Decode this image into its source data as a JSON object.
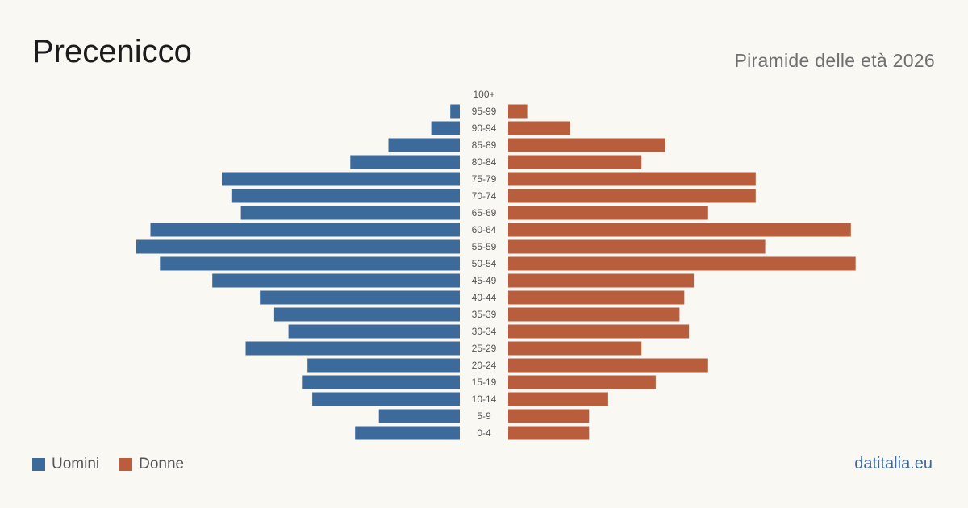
{
  "header": {
    "title": "Precenicco",
    "subtitle": "Piramide delle età 2026"
  },
  "legend": {
    "men_label": "Uomini",
    "women_label": "Donne"
  },
  "footer": {
    "brand": "datitalia.eu"
  },
  "colors": {
    "men": "#3b6a9b",
    "women": "#b95e3d",
    "background": "#faf8f3",
    "axis_text": "#555555"
  },
  "chart_data": {
    "type": "bar",
    "orientation": "horizontal-pyramid",
    "title": "Precenicco",
    "subtitle": "Piramide delle età 2026",
    "categories": [
      "100+",
      "95-99",
      "90-94",
      "85-89",
      "80-84",
      "75-79",
      "70-74",
      "65-69",
      "60-64",
      "55-59",
      "50-54",
      "45-49",
      "40-44",
      "35-39",
      "30-34",
      "25-29",
      "20-24",
      "15-19",
      "10-14",
      "5-9",
      "0-4"
    ],
    "series": [
      {
        "name": "Uomini",
        "values": [
          0,
          2,
          6,
          15,
          23,
          50,
          48,
          46,
          65,
          68,
          63,
          52,
          42,
          39,
          36,
          45,
          32,
          33,
          31,
          17,
          22
        ]
      },
      {
        "name": "Donne",
        "values": [
          0,
          4,
          13,
          33,
          28,
          52,
          52,
          42,
          72,
          54,
          73,
          39,
          37,
          36,
          38,
          28,
          42,
          31,
          21,
          17,
          17
        ]
      }
    ],
    "legend": "bottom-left",
    "grid": false
  }
}
